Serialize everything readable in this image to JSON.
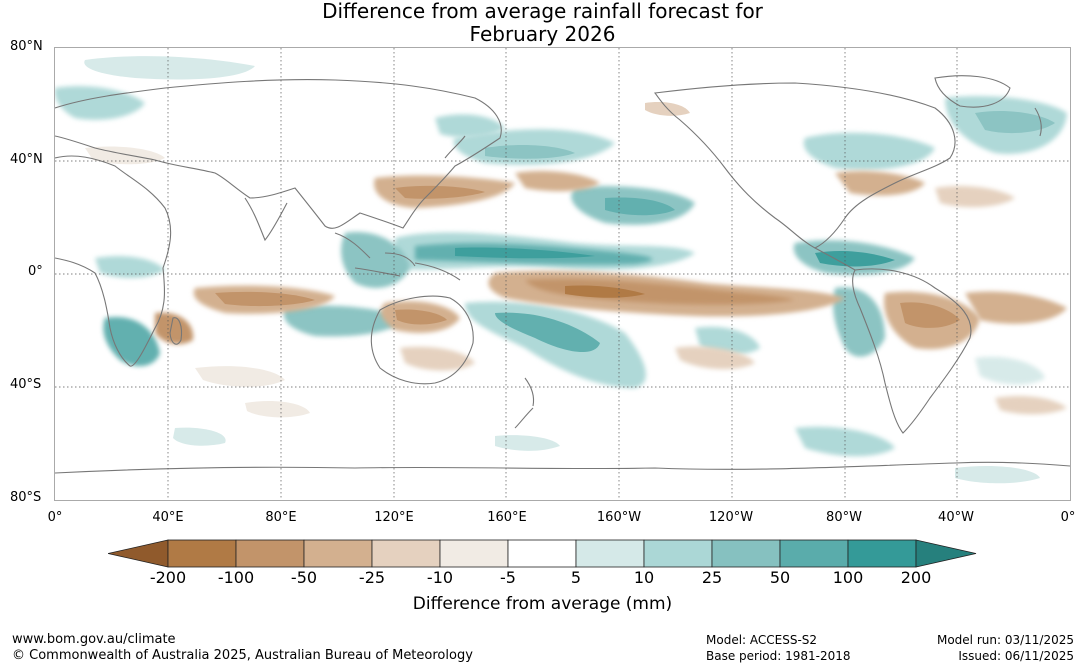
{
  "title": {
    "line1": "Difference from average rainfall forecast for",
    "line2": "February 2026"
  },
  "latitude_labels": [
    "80°N",
    "40°N",
    "0°",
    "40°S",
    "80°S"
  ],
  "longitude_labels": [
    "0°",
    "40°E",
    "80°E",
    "120°E",
    "160°E",
    "160°W",
    "120°W",
    "80°W",
    "40°W",
    "0°"
  ],
  "legend": {
    "title": "Difference from average (mm)",
    "ticks": [
      "-200",
      "-100",
      "-50",
      "-25",
      "-10",
      "-5",
      "5",
      "10",
      "25",
      "50",
      "100",
      "200"
    ],
    "colors": [
      "#905a2c",
      "#b07a45",
      "#c2946a",
      "#d3b08f",
      "#e5d1bf",
      "#f1ebe4",
      "#ffffff",
      "#d5e9e8",
      "#abd7d6",
      "#86c1c0",
      "#5aacab",
      "#349a98",
      "#26807d"
    ]
  },
  "footer": {
    "website": "www.bom.gov.au/climate",
    "copyright": "© Commonwealth of Australia 2025, Australian Bureau of Meteorology",
    "model": "Model: ACCESS-S2",
    "base_period": "Base period: 1981-2018",
    "model_run": "Model run: 03/11/2025",
    "issued": "Issued: 06/11/2025"
  }
}
